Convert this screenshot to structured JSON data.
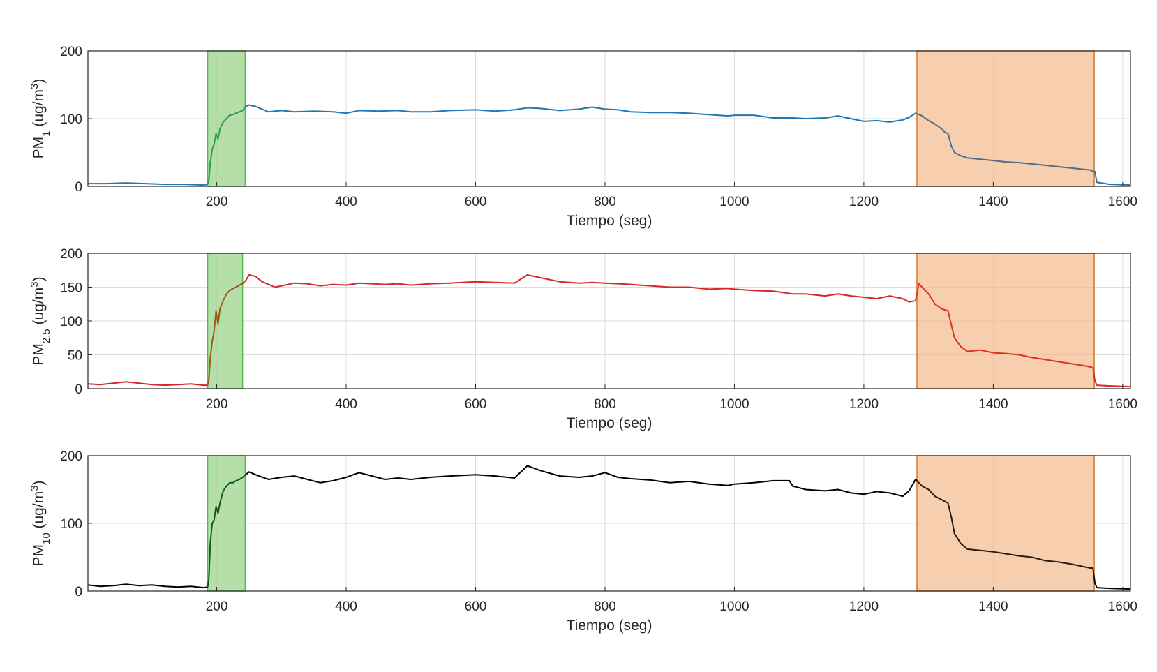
{
  "chart_data": [
    {
      "type": "line",
      "title": "",
      "xlabel": "Tiempo (seg)",
      "ylabel": {
        "base": "PM",
        "sub": "1",
        "unit_prefix": " (ug/m",
        "unit_sup": "3",
        "unit_suffix": ")"
      },
      "xlim": [
        1,
        1612
      ],
      "ylim": [
        0,
        200
      ],
      "xticks": [
        200,
        400,
        600,
        800,
        1000,
        1200,
        1400,
        1600
      ],
      "yticks": [
        0,
        100,
        200
      ],
      "grid": true,
      "color": "#1f77b4",
      "green_color": "#2e9a55",
      "orange_color": "#4d6e8a",
      "series": [
        {
          "x": [
            1,
            30,
            60,
            90,
            120,
            150,
            180,
            186,
            188,
            190,
            193,
            196,
            199,
            202,
            205,
            210,
            215,
            220,
            225,
            230,
            235,
            240,
            245,
            250,
            260,
            270,
            280,
            300,
            320,
            350,
            380,
            400,
            420,
            450,
            480,
            500,
            530,
            560,
            600,
            630,
            660,
            680,
            700,
            730,
            760,
            780,
            800,
            820,
            840,
            870,
            900,
            930,
            960,
            990,
            1000,
            1030,
            1060,
            1090,
            1110,
            1140,
            1160,
            1180,
            1200,
            1220,
            1240,
            1260,
            1270,
            1280,
            1290,
            1300,
            1310,
            1320,
            1325,
            1330,
            1335,
            1340,
            1350,
            1360,
            1380,
            1400,
            1420,
            1440,
            1460,
            1480,
            1500,
            1520,
            1540,
            1550,
            1554,
            1557,
            1560,
            1580,
            1612
          ],
          "y": [
            4,
            4,
            5,
            4,
            3,
            3,
            2,
            3,
            10,
            35,
            55,
            62,
            78,
            70,
            85,
            95,
            100,
            105,
            106,
            108,
            110,
            112,
            118,
            120,
            118,
            114,
            110,
            112,
            110,
            111,
            110,
            108,
            112,
            111,
            112,
            110,
            110,
            112,
            113,
            111,
            113,
            116,
            115,
            112,
            114,
            117,
            114,
            113,
            110,
            109,
            109,
            108,
            106,
            104,
            105,
            105,
            101,
            101,
            100,
            101,
            104,
            100,
            96,
            97,
            95,
            98,
            102,
            108,
            104,
            97,
            92,
            85,
            80,
            78,
            60,
            50,
            45,
            42,
            40,
            38,
            36,
            35,
            33,
            31,
            29,
            27,
            25,
            24,
            22,
            22,
            6,
            3,
            2
          ]
        }
      ],
      "highlights": [
        {
          "x0": 186,
          "x1": 244,
          "fill": "#a9d89a",
          "stroke": "#4fbf4a",
          "opacity": 0.85
        },
        {
          "x0": 1282,
          "x1": 1556,
          "fill": "#f4b98b",
          "stroke": "#d07a2e",
          "opacity": 0.7
        }
      ]
    },
    {
      "type": "line",
      "title": "",
      "xlabel": "Tiempo (seg)",
      "ylabel": {
        "base": "PM",
        "sub": "2.5",
        "unit_prefix": " (ug/m",
        "unit_sup": "3",
        "unit_suffix": ")"
      },
      "xlim": [
        1,
        1612
      ],
      "ylim": [
        0,
        200
      ],
      "xticks": [
        200,
        400,
        600,
        800,
        1000,
        1200,
        1400,
        1600
      ],
      "yticks": [
        0,
        50,
        100,
        150,
        200
      ],
      "grid": true,
      "color": "#d62728",
      "green_color": "#9a5a12",
      "orange_color": "#e0301f",
      "series": [
        {
          "x": [
            1,
            20,
            40,
            60,
            80,
            100,
            120,
            140,
            160,
            180,
            186,
            188,
            190,
            193,
            196,
            199,
            202,
            205,
            210,
            215,
            220,
            225,
            230,
            235,
            240,
            245,
            250,
            260,
            270,
            290,
            300,
            320,
            340,
            360,
            380,
            400,
            420,
            440,
            460,
            480,
            500,
            530,
            560,
            600,
            630,
            660,
            680,
            700,
            730,
            760,
            780,
            800,
            820,
            840,
            870,
            900,
            930,
            960,
            990,
            1000,
            1030,
            1060,
            1090,
            1110,
            1140,
            1160,
            1180,
            1200,
            1220,
            1240,
            1260,
            1270,
            1280,
            1285,
            1290,
            1300,
            1310,
            1320,
            1330,
            1335,
            1340,
            1350,
            1360,
            1380,
            1400,
            1420,
            1440,
            1460,
            1480,
            1500,
            1520,
            1540,
            1550,
            1554,
            1557,
            1560,
            1580,
            1612
          ],
          "y": [
            7,
            6,
            8,
            10,
            8,
            6,
            5,
            6,
            7,
            5,
            5,
            15,
            45,
            70,
            85,
            115,
            95,
            118,
            130,
            140,
            145,
            148,
            150,
            153,
            155,
            160,
            168,
            166,
            158,
            150,
            152,
            156,
            155,
            152,
            154,
            153,
            156,
            155,
            154,
            155,
            153,
            155,
            156,
            158,
            157,
            156,
            168,
            164,
            158,
            156,
            157,
            156,
            155,
            154,
            152,
            150,
            150,
            147,
            148,
            147,
            145,
            144,
            140,
            140,
            137,
            140,
            137,
            135,
            133,
            137,
            133,
            128,
            130,
            155,
            150,
            140,
            125,
            118,
            115,
            95,
            75,
            62,
            55,
            57,
            53,
            52,
            50,
            46,
            43,
            40,
            37,
            34,
            32,
            31,
            12,
            5,
            4,
            3
          ]
        }
      ],
      "highlights": [
        {
          "x0": 186,
          "x1": 240,
          "fill": "#a9d89a",
          "stroke": "#4fbf4a",
          "opacity": 0.85
        },
        {
          "x0": 1282,
          "x1": 1556,
          "fill": "#f4b98b",
          "stroke": "#d07a2e",
          "opacity": 0.7
        }
      ]
    },
    {
      "type": "line",
      "title": "",
      "xlabel": "Tiempo (seg)",
      "ylabel": {
        "base": "PM",
        "sub": "10",
        "unit_prefix": " (ug/m",
        "unit_sup": "3",
        "unit_suffix": ")"
      },
      "xlim": [
        1,
        1612
      ],
      "ylim": [
        0,
        200
      ],
      "xticks": [
        200,
        400,
        600,
        800,
        1000,
        1200,
        1400,
        1600
      ],
      "yticks": [
        0,
        100,
        200
      ],
      "grid": true,
      "color": "#000000",
      "green_color": "#0e5a1e",
      "orange_color": "#2a1a10",
      "series": [
        {
          "x": [
            1,
            20,
            40,
            60,
            80,
            100,
            120,
            140,
            160,
            180,
            186,
            188,
            190,
            193,
            196,
            199,
            202,
            205,
            210,
            215,
            220,
            225,
            230,
            235,
            240,
            245,
            250,
            260,
            280,
            300,
            320,
            340,
            360,
            380,
            400,
            420,
            440,
            460,
            480,
            500,
            530,
            560,
            600,
            630,
            660,
            680,
            700,
            730,
            760,
            780,
            800,
            820,
            840,
            870,
            900,
            930,
            960,
            990,
            1000,
            1030,
            1060,
            1085,
            1090,
            1110,
            1140,
            1160,
            1180,
            1200,
            1220,
            1240,
            1260,
            1270,
            1280,
            1285,
            1290,
            1300,
            1310,
            1320,
            1330,
            1335,
            1340,
            1350,
            1360,
            1380,
            1400,
            1420,
            1440,
            1460,
            1480,
            1500,
            1520,
            1540,
            1550,
            1554,
            1557,
            1560,
            1580,
            1612
          ],
          "y": [
            9,
            7,
            8,
            10,
            8,
            9,
            7,
            6,
            7,
            5,
            6,
            20,
            70,
            100,
            105,
            125,
            115,
            130,
            148,
            155,
            160,
            160,
            163,
            165,
            168,
            172,
            176,
            172,
            165,
            168,
            170,
            165,
            160,
            163,
            168,
            175,
            170,
            165,
            167,
            165,
            168,
            170,
            172,
            170,
            167,
            185,
            178,
            170,
            168,
            170,
            175,
            168,
            166,
            164,
            160,
            162,
            158,
            156,
            158,
            160,
            163,
            163,
            155,
            150,
            148,
            150,
            145,
            143,
            147,
            145,
            140,
            148,
            165,
            160,
            155,
            150,
            140,
            135,
            130,
            110,
            85,
            70,
            62,
            60,
            58,
            55,
            52,
            50,
            45,
            43,
            40,
            36,
            34,
            34,
            12,
            5,
            4,
            3
          ]
        }
      ],
      "highlights": [
        {
          "x0": 186,
          "x1": 244,
          "fill": "#a9d89a",
          "stroke": "#4fbf4a",
          "opacity": 0.85
        },
        {
          "x0": 1282,
          "x1": 1556,
          "fill": "#f4b98b",
          "stroke": "#d07a2e",
          "opacity": 0.7
        }
      ]
    }
  ]
}
